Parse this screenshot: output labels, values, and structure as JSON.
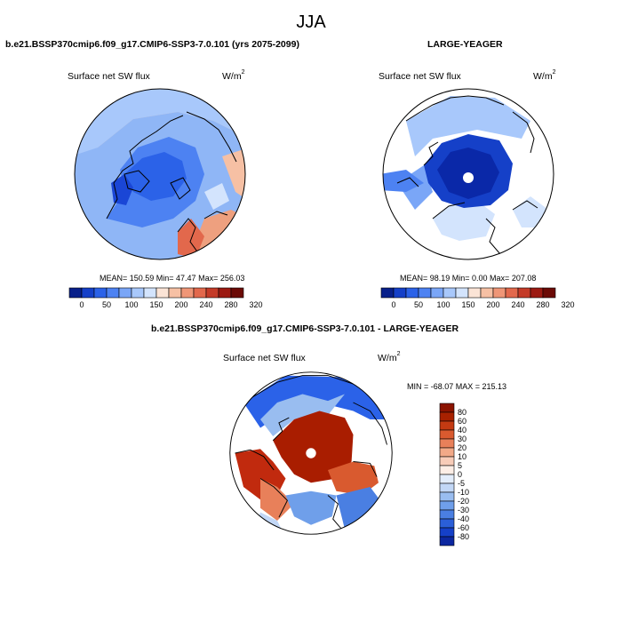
{
  "main_title": "JJA",
  "panels": [
    {
      "case_title": "b.e21.BSSP370cmip6.f09_g17.CMIP6-SSP3-7.0.101 (yrs 2075-2099)",
      "variable": "Surface net SW flux",
      "units": "W/m",
      "units_sup": "2",
      "stats": "MEAN= 150.59  Min=  47.47  Max= 256.03",
      "colorbar": {
        "labels": [
          "0",
          "50",
          "100",
          "150",
          "200",
          "240",
          "280",
          "320"
        ],
        "colors": [
          "#08208a",
          "#1540c8",
          "#2b62e8",
          "#4d82f2",
          "#7aa6f7",
          "#a8c8fb",
          "#d3e4fd",
          "#fbe4d6",
          "#f6c0a4",
          "#ef9677",
          "#e2684c",
          "#c43b28",
          "#9c1a12",
          "#6b0a06"
        ]
      }
    },
    {
      "case_title": "LARGE-YEAGER",
      "variable": "Surface net SW flux",
      "units": "W/m",
      "units_sup": "2",
      "stats": "MEAN=  98.19  Min=   0.00  Max= 207.08",
      "colorbar": {
        "labels": [
          "0",
          "50",
          "100",
          "150",
          "200",
          "240",
          "280",
          "320"
        ],
        "colors": [
          "#08208a",
          "#1540c8",
          "#2b62e8",
          "#4d82f2",
          "#7aa6f7",
          "#a8c8fb",
          "#d3e4fd",
          "#fbe4d6",
          "#f6c0a4",
          "#ef9677",
          "#e2684c",
          "#c43b28",
          "#9c1a12",
          "#6b0a06"
        ]
      }
    },
    {
      "case_title": "b.e21.BSSP370cmip6.f09_g17.CMIP6-SSP3-7.0.101 - LARGE-YEAGER",
      "variable": "Surface net SW flux",
      "units": "W/m",
      "units_sup": "2",
      "stats": "MIN = -68.07 MAX = 215.13",
      "colorbar": {
        "labels": [
          "80",
          "60",
          "40",
          "30",
          "20",
          "10",
          "5",
          "0",
          "-5",
          "-10",
          "-20",
          "-30",
          "-40",
          "-60",
          "-80"
        ],
        "colors": [
          "#8b1300",
          "#a82100",
          "#c43a12",
          "#d95a2f",
          "#e8805a",
          "#f2a988",
          "#f8ccb8",
          "#fdeee6",
          "#e3edfb",
          "#c2d7f6",
          "#99bdf0",
          "#6f9fea",
          "#4a7fe2",
          "#2b5fd8",
          "#1540c8",
          "#0c27a0"
        ]
      }
    }
  ],
  "map_colors": {
    "ice_blue_dark": "#1a46d6",
    "ice_blue_mid": "#3b6cf0",
    "ocean_light_blue": "#8fb6f6",
    "pale_blue": "#d8e7fc",
    "land_peach": "#f7cdb4",
    "land_salmon": "#eea07f",
    "diff_red": "#c12a0e",
    "diff_dark_red": "#a91d00"
  }
}
